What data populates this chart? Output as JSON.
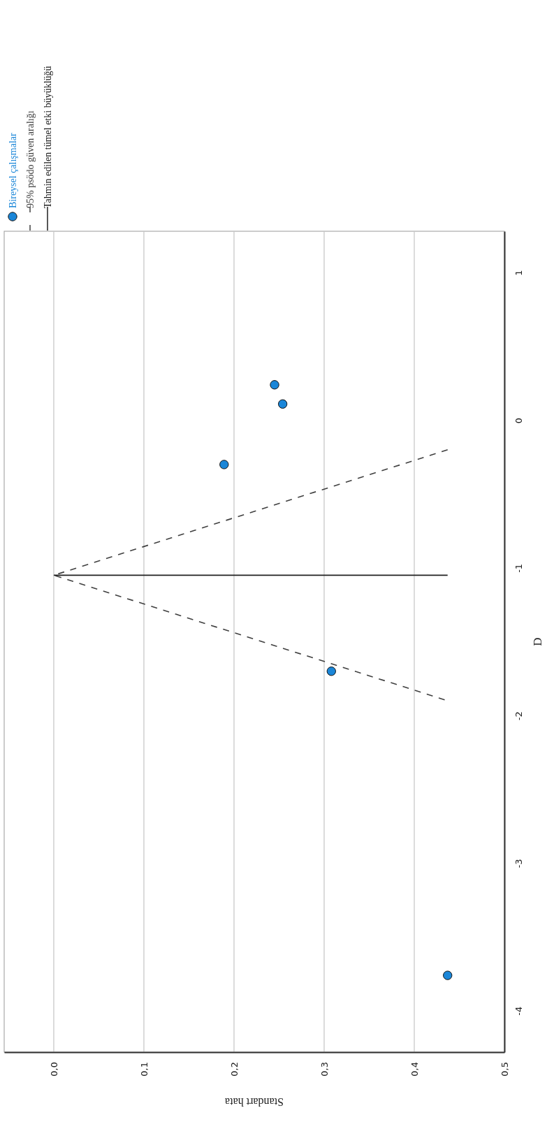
{
  "chart_data": {
    "type": "scatter",
    "xlabel": "Standart hata",
    "ylabel": "D",
    "xlim": [
      -0.055,
      0.5
    ],
    "ylim": [
      -4.28,
      1.28
    ],
    "yticks": [
      -4,
      -3,
      -2,
      -1,
      0,
      1
    ],
    "xticks": [
      {
        "value": 0,
        "label": "0,0"
      },
      {
        "value": 0.1,
        "label": "0,1"
      },
      {
        "value": 0.2,
        "label": "0,2"
      },
      {
        "value": 0.3,
        "label": "0,3"
      },
      {
        "value": 0.4,
        "label": "0,4"
      },
      {
        "value": 0.5,
        "label": "0,5"
      }
    ],
    "grid": "x",
    "legend": "top left",
    "series": [
      {
        "name": "Bireysel çalışmalar",
        "color": "#1a86d8",
        "marker": "circle",
        "x": [
          0.245,
          0.254,
          0.189,
          0.308,
          0.437
        ],
        "values": [
          0.24,
          0.11,
          -0.3,
          -1.7,
          -3.76
        ]
      },
      {
        "name": "95% psödo güven aralığı",
        "type": "line",
        "color": "#404040",
        "line_style": "dashed",
        "x": [
          0.437,
          0,
          0.437
        ],
        "values": [
          -0.2,
          -1.05,
          -1.9
        ]
      },
      {
        "name": "Tahmin edilen tümel etki büyüklüğü",
        "type": "line",
        "color": "#202020",
        "line_style": "solid",
        "x": [
          0,
          0.437
        ],
        "values": [
          -1.05,
          -1.05
        ]
      }
    ]
  }
}
